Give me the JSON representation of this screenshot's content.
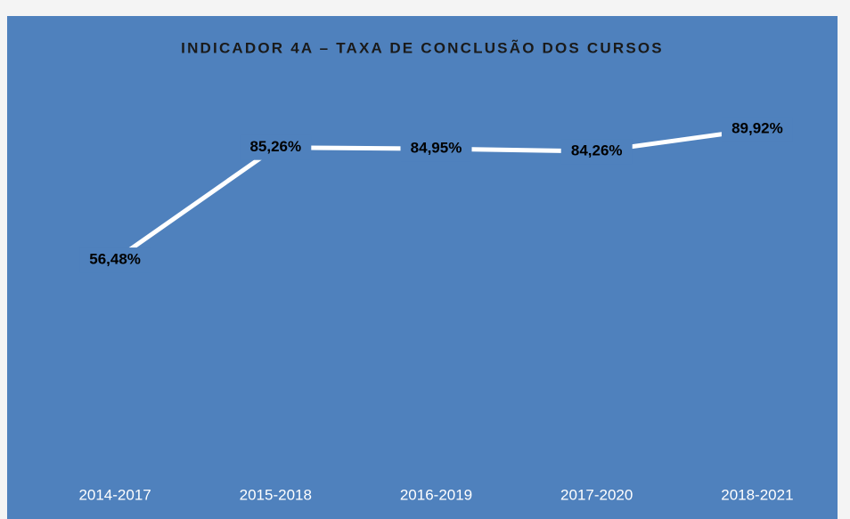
{
  "chart_data": {
    "type": "line",
    "title": "INDICADOR 4A – TAXA DE CONCLUSÃO DOS CURSOS",
    "categories": [
      "2014-2017",
      "2015-2018",
      "2016-2019",
      "2017-2020",
      "2018-2021"
    ],
    "values": [
      56.48,
      85.26,
      84.95,
      84.26,
      89.92
    ],
    "value_labels": [
      "56,48%",
      "85,26%",
      "84,95%",
      "84,26%",
      "89,92%"
    ],
    "color": "#ffffff",
    "ylim": [
      0,
      100
    ]
  }
}
